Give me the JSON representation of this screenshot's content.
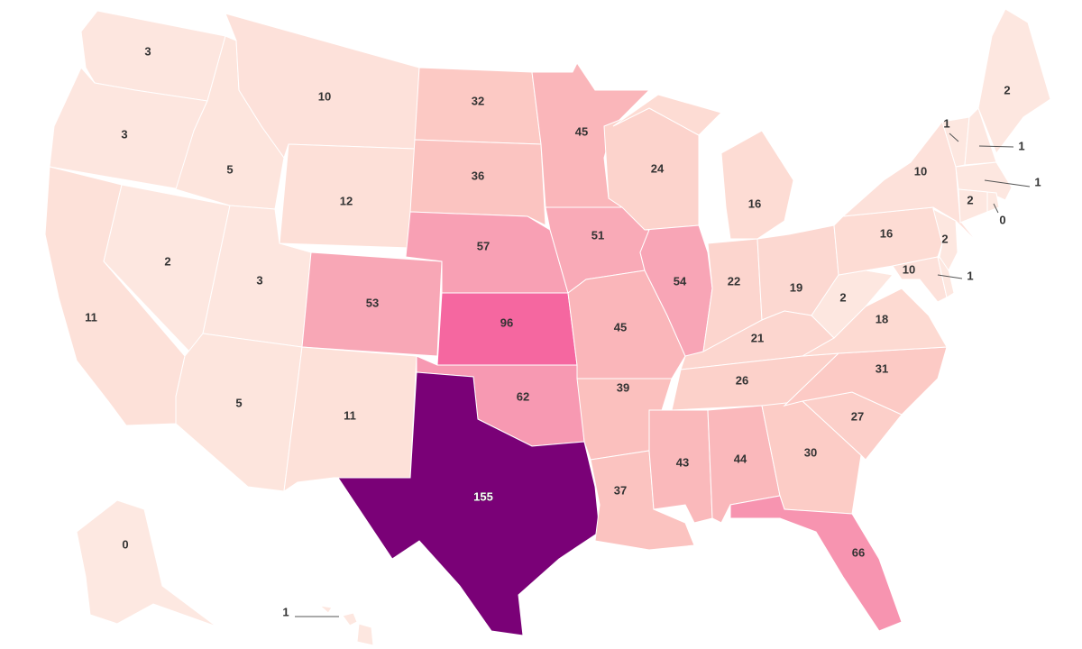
{
  "color_scale": {
    "stops": [
      [
        0,
        "#fde8e1"
      ],
      [
        12,
        "#fde0d8"
      ],
      [
        25,
        "#fcd2cb"
      ],
      [
        40,
        "#fbbfbd"
      ],
      [
        55,
        "#f8a3b5"
      ],
      [
        66,
        "#f794b0"
      ],
      [
        96,
        "#f567a0"
      ],
      [
        155,
        "#7a0177"
      ]
    ]
  },
  "states": [
    {
      "id": "WA",
      "value": "3"
    },
    {
      "id": "OR",
      "value": "3"
    },
    {
      "id": "CA",
      "value": "11"
    },
    {
      "id": "NV",
      "value": "2"
    },
    {
      "id": "ID",
      "value": "5"
    },
    {
      "id": "MT",
      "value": "10"
    },
    {
      "id": "WY",
      "value": "12"
    },
    {
      "id": "UT",
      "value": "3"
    },
    {
      "id": "AZ",
      "value": "5"
    },
    {
      "id": "CO",
      "value": "53"
    },
    {
      "id": "NM",
      "value": "11"
    },
    {
      "id": "ND",
      "value": "32"
    },
    {
      "id": "SD",
      "value": "36"
    },
    {
      "id": "NE",
      "value": "57"
    },
    {
      "id": "KS",
      "value": "96"
    },
    {
      "id": "OK",
      "value": "62"
    },
    {
      "id": "TX",
      "value": "155"
    },
    {
      "id": "MN",
      "value": "45"
    },
    {
      "id": "IA",
      "value": "51"
    },
    {
      "id": "MO",
      "value": "45"
    },
    {
      "id": "AR",
      "value": "39"
    },
    {
      "id": "LA",
      "value": "37"
    },
    {
      "id": "WI",
      "value": "24"
    },
    {
      "id": "IL",
      "value": "54"
    },
    {
      "id": "MI",
      "value": "16"
    },
    {
      "id": "IN",
      "value": "22"
    },
    {
      "id": "OH",
      "value": "19"
    },
    {
      "id": "KY",
      "value": "21"
    },
    {
      "id": "TN",
      "value": "26"
    },
    {
      "id": "MS",
      "value": "43"
    },
    {
      "id": "AL",
      "value": "44"
    },
    {
      "id": "GA",
      "value": "30"
    },
    {
      "id": "FL",
      "value": "66"
    },
    {
      "id": "SC",
      "value": "27"
    },
    {
      "id": "NC",
      "value": "31"
    },
    {
      "id": "VA",
      "value": "18"
    },
    {
      "id": "WV",
      "value": "2"
    },
    {
      "id": "PA",
      "value": "16"
    },
    {
      "id": "NY",
      "value": "10"
    },
    {
      "id": "MD",
      "value": "10"
    },
    {
      "id": "DE",
      "value": "1"
    },
    {
      "id": "NJ",
      "value": "2"
    },
    {
      "id": "VT",
      "value": "1"
    },
    {
      "id": "NH",
      "value": "1"
    },
    {
      "id": "ME",
      "value": "2"
    },
    {
      "id": "MA",
      "value": "1"
    },
    {
      "id": "CT",
      "value": "2"
    },
    {
      "id": "RI",
      "value": "0"
    },
    {
      "id": "AK",
      "value": "0"
    },
    {
      "id": "HI",
      "value": "1"
    }
  ]
}
